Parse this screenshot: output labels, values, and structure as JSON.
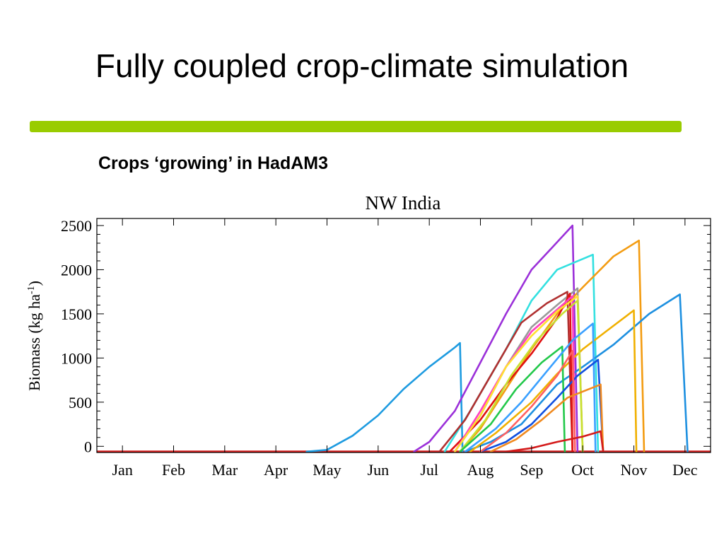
{
  "slide": {
    "title": "Fully coupled crop-climate simulation",
    "subtitle": "Crops ‘growing’ in HadAM3",
    "accent_color": "#99cc00"
  },
  "chart_data": {
    "type": "line",
    "title": "NW India",
    "ylabel": "Biomass (kg ha",
    "ylabel_sup": "-1",
    "ylabel_tail": ")",
    "xlabel": "",
    "x_unit": "month",
    "xlim": [
      -0.5,
      11.5
    ],
    "ylim": [
      -70,
      2580
    ],
    "yticks": [
      0,
      500,
      1000,
      1500,
      2000,
      2500
    ],
    "xtick_labels": [
      "Jan",
      "Feb",
      "Mar",
      "Apr",
      "May",
      "Jun",
      "Jul",
      "Aug",
      "Sep",
      "Oct",
      "Nov",
      "Dec"
    ],
    "baseline": {
      "value": -60,
      "color": "#d42020"
    },
    "series": [
      {
        "color": "#1e9be0",
        "points": [
          [
            3.6,
            -60
          ],
          [
            4.0,
            -40
          ],
          [
            4.5,
            120
          ],
          [
            5.0,
            350
          ],
          [
            5.5,
            650
          ],
          [
            6.0,
            900
          ],
          [
            6.5,
            1120
          ],
          [
            6.6,
            1170
          ],
          [
            6.65,
            -60
          ]
        ]
      },
      {
        "color": "#9b30d9",
        "points": [
          [
            5.7,
            -60
          ],
          [
            6.0,
            50
          ],
          [
            6.5,
            400
          ],
          [
            7.0,
            950
          ],
          [
            7.5,
            1500
          ],
          [
            8.0,
            2000
          ],
          [
            8.4,
            2250
          ],
          [
            8.8,
            2500
          ],
          [
            8.9,
            -60
          ]
        ]
      },
      {
        "color": "#33e0e0",
        "points": [
          [
            6.3,
            -60
          ],
          [
            6.8,
            400
          ],
          [
            7.5,
            1100
          ],
          [
            8.0,
            1650
          ],
          [
            8.5,
            2000
          ],
          [
            9.2,
            2170
          ],
          [
            9.3,
            -60
          ]
        ]
      },
      {
        "color": "#f39c12",
        "points": [
          [
            6.6,
            -60
          ],
          [
            7.0,
            200
          ],
          [
            7.5,
            650
          ],
          [
            8.0,
            1100
          ],
          [
            8.5,
            1500
          ],
          [
            9.0,
            1800
          ],
          [
            9.6,
            2150
          ],
          [
            10.1,
            2330
          ],
          [
            10.2,
            -60
          ]
        ]
      },
      {
        "color": "#1e90e0",
        "points": [
          [
            6.7,
            -60
          ],
          [
            7.2,
            50
          ],
          [
            7.8,
            250
          ],
          [
            8.5,
            700
          ],
          [
            9.0,
            900
          ],
          [
            9.6,
            1150
          ],
          [
            10.3,
            1500
          ],
          [
            10.9,
            1720
          ],
          [
            11.05,
            -60
          ]
        ]
      },
      {
        "color": "#f0b000",
        "points": [
          [
            6.8,
            -60
          ],
          [
            7.3,
            150
          ],
          [
            8.0,
            500
          ],
          [
            8.5,
            820
          ],
          [
            9.0,
            1100
          ],
          [
            9.5,
            1320
          ],
          [
            10.0,
            1540
          ],
          [
            10.05,
            -60
          ]
        ]
      },
      {
        "color": "#9a9a9a",
        "points": [
          [
            6.5,
            -60
          ],
          [
            7.0,
            350
          ],
          [
            7.5,
            900
          ],
          [
            8.0,
            1350
          ],
          [
            8.5,
            1600
          ],
          [
            8.9,
            1790
          ],
          [
            9.0,
            -60
          ]
        ]
      },
      {
        "color": "#b03030",
        "points": [
          [
            6.2,
            -60
          ],
          [
            6.7,
            300
          ],
          [
            7.3,
            900
          ],
          [
            7.8,
            1400
          ],
          [
            8.3,
            1620
          ],
          [
            8.7,
            1750
          ],
          [
            8.8,
            -60
          ]
        ]
      },
      {
        "color": "#e01010",
        "points": [
          [
            6.4,
            -60
          ],
          [
            7.0,
            300
          ],
          [
            7.5,
            700
          ],
          [
            8.0,
            1050
          ],
          [
            8.5,
            1450
          ],
          [
            8.75,
            1730
          ],
          [
            8.8,
            -60
          ]
        ]
      },
      {
        "color": "#ff40c0",
        "points": [
          [
            6.5,
            -60
          ],
          [
            7.0,
            400
          ],
          [
            7.5,
            900
          ],
          [
            8.0,
            1300
          ],
          [
            8.5,
            1550
          ],
          [
            8.8,
            1700
          ],
          [
            8.85,
            -60
          ]
        ]
      },
      {
        "color": "#ffe030",
        "points": [
          [
            6.5,
            -60
          ],
          [
            7.0,
            350
          ],
          [
            7.5,
            900
          ],
          [
            8.0,
            1250
          ],
          [
            8.5,
            1530
          ],
          [
            8.9,
            1700
          ],
          [
            9.0,
            -60
          ]
        ]
      },
      {
        "color": "#c8e030",
        "points": [
          [
            6.6,
            -60
          ],
          [
            7.1,
            300
          ],
          [
            7.6,
            800
          ],
          [
            8.1,
            1200
          ],
          [
            8.6,
            1500
          ],
          [
            8.9,
            1650
          ],
          [
            9.0,
            -60
          ]
        ]
      },
      {
        "color": "#22c84a",
        "points": [
          [
            6.6,
            -60
          ],
          [
            7.2,
            250
          ],
          [
            7.7,
            650
          ],
          [
            8.2,
            950
          ],
          [
            8.6,
            1130
          ],
          [
            8.65,
            -60
          ]
        ]
      },
      {
        "color": "#3aa0ff",
        "points": [
          [
            6.7,
            -60
          ],
          [
            7.3,
            200
          ],
          [
            7.8,
            500
          ],
          [
            8.3,
            850
          ],
          [
            8.8,
            1200
          ],
          [
            9.2,
            1390
          ],
          [
            9.25,
            -60
          ]
        ]
      },
      {
        "color": "#1050e0",
        "points": [
          [
            7.0,
            -60
          ],
          [
            7.5,
            50
          ],
          [
            8.0,
            250
          ],
          [
            8.5,
            550
          ],
          [
            8.9,
            800
          ],
          [
            9.3,
            980
          ],
          [
            9.4,
            -60
          ]
        ]
      },
      {
        "color": "#ff6060",
        "points": [
          [
            7.0,
            -60
          ],
          [
            7.5,
            150
          ],
          [
            8.0,
            450
          ],
          [
            8.5,
            800
          ],
          [
            8.8,
            1080
          ],
          [
            8.85,
            -60
          ]
        ]
      },
      {
        "color": "#f08a20",
        "points": [
          [
            7.2,
            -60
          ],
          [
            7.7,
            80
          ],
          [
            8.2,
            300
          ],
          [
            8.7,
            550
          ],
          [
            9.0,
            620
          ],
          [
            9.35,
            700
          ],
          [
            9.4,
            -60
          ]
        ]
      },
      {
        "color": "#d41a1a",
        "points": [
          [
            7.5,
            -60
          ],
          [
            8.0,
            -20
          ],
          [
            8.5,
            50
          ],
          [
            9.0,
            110
          ],
          [
            9.35,
            170
          ],
          [
            9.4,
            -60
          ]
        ]
      }
    ]
  }
}
